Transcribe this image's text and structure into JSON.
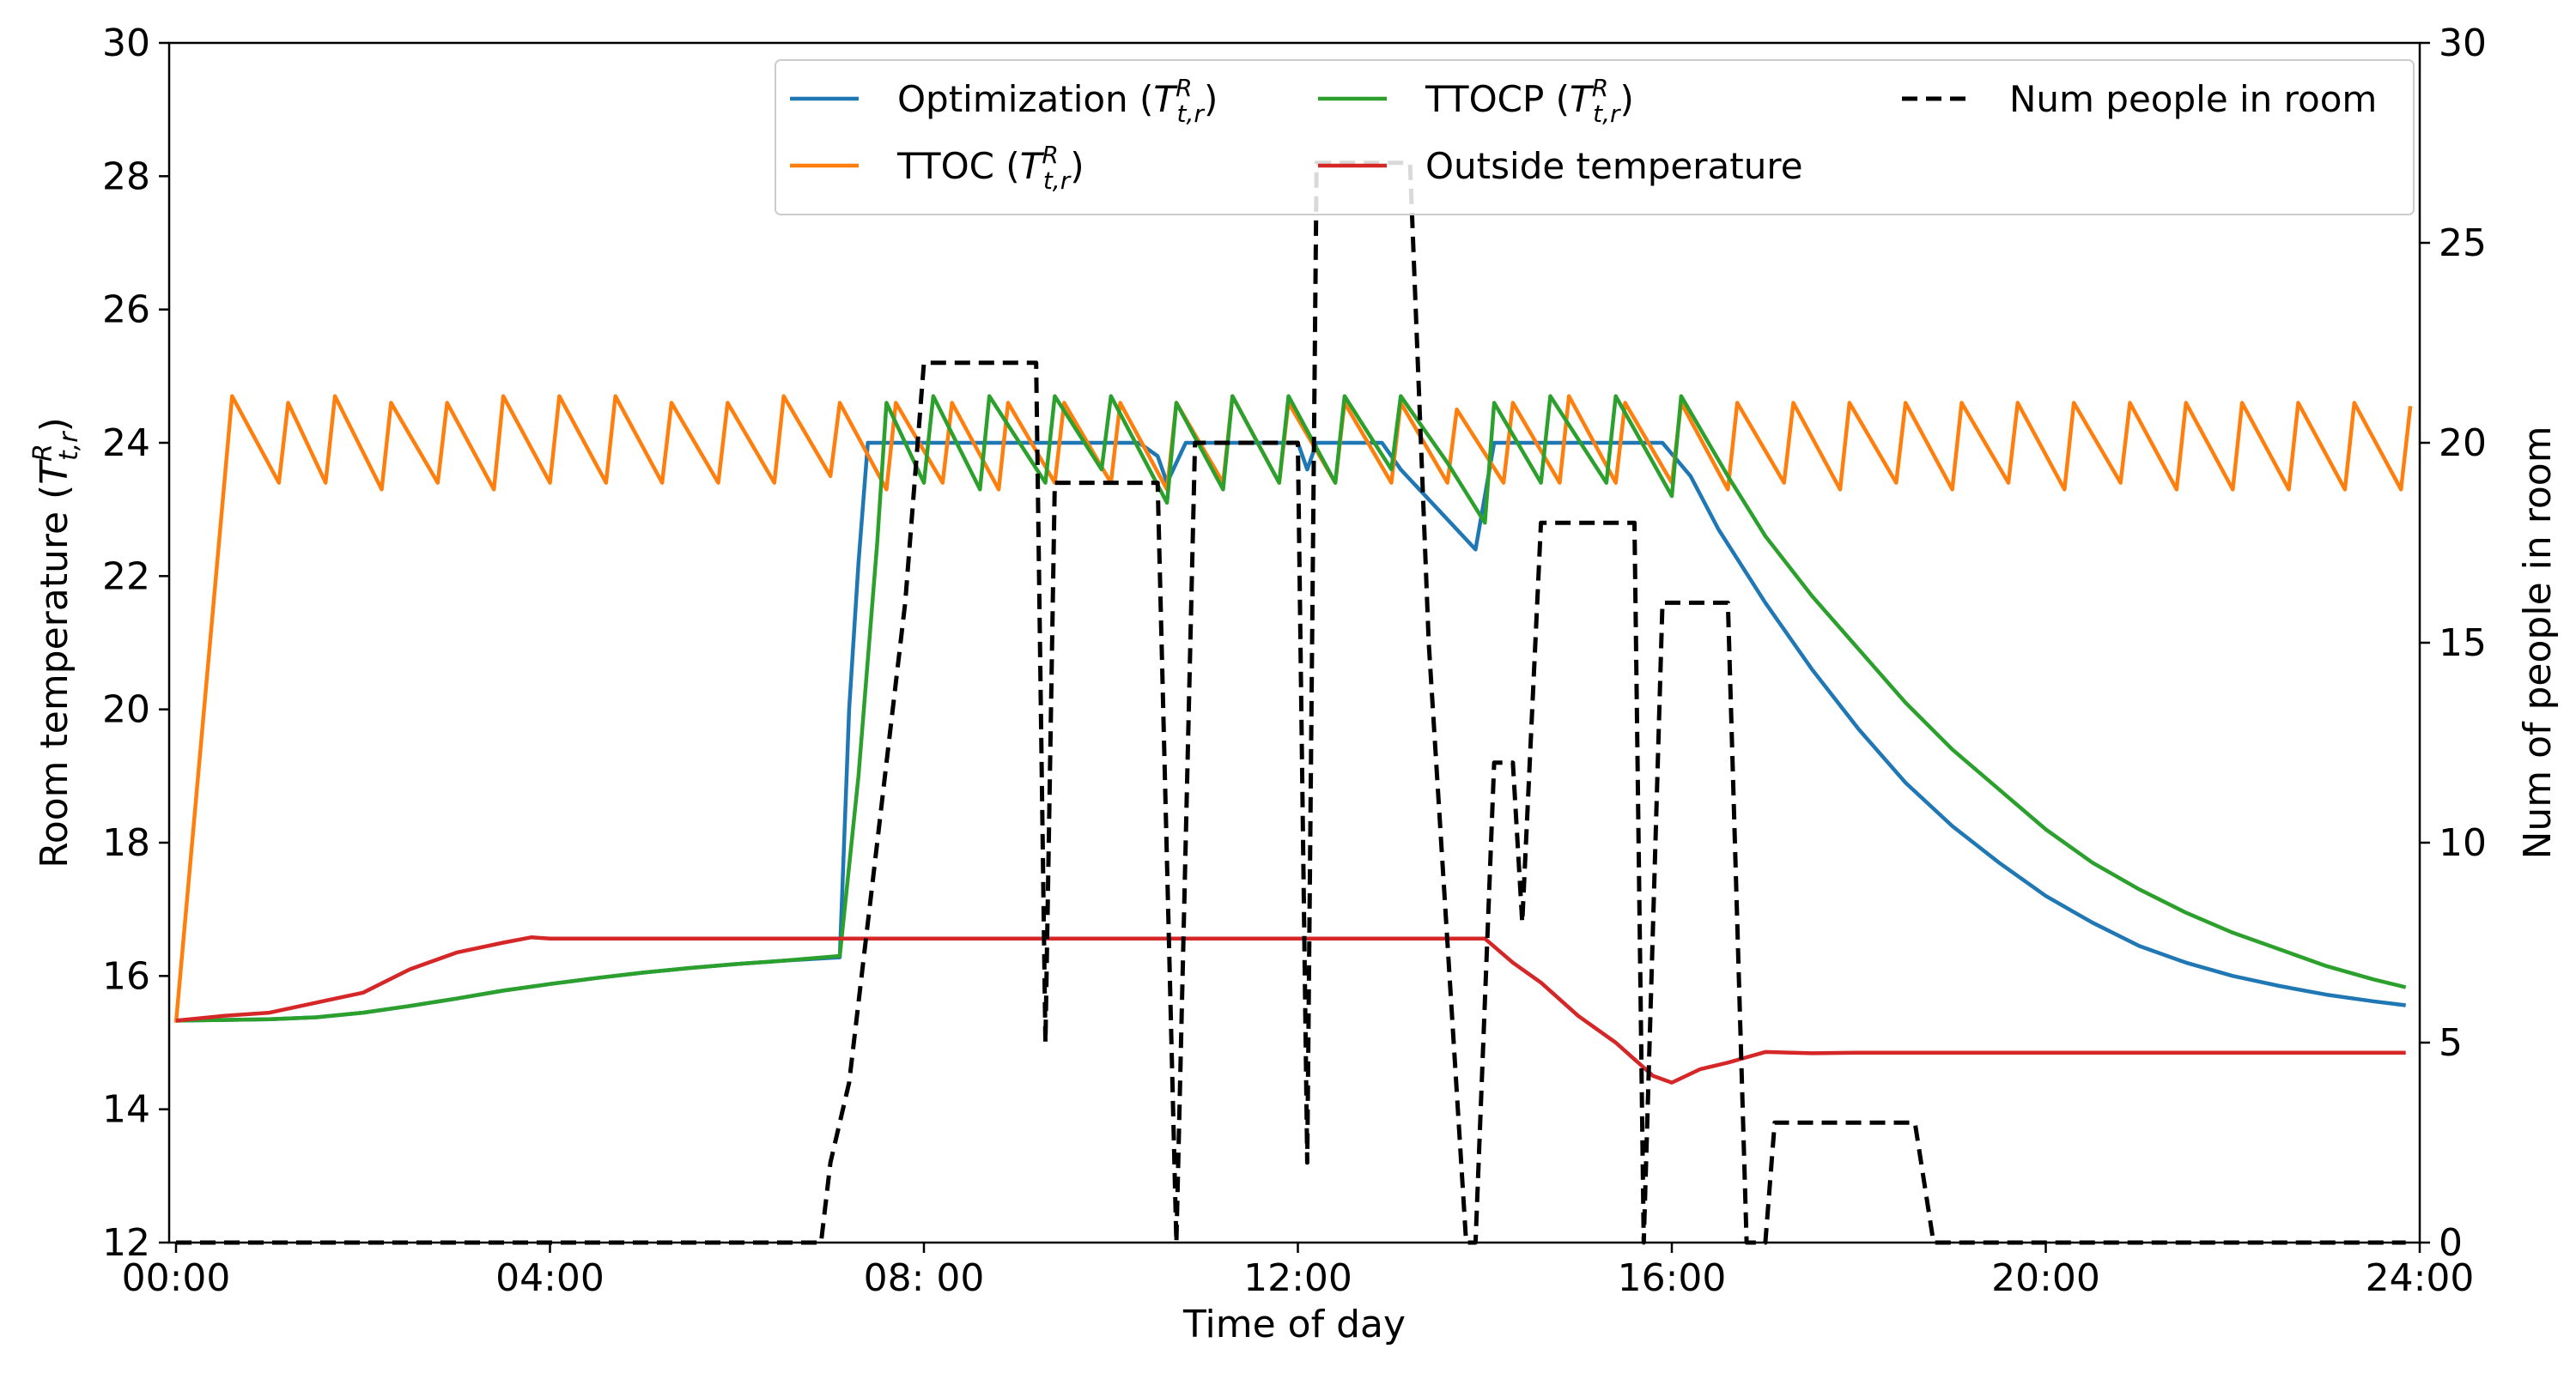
{
  "chart_data": {
    "type": "line",
    "xlabel": "Time of day",
    "ylabel_left": "Room temperature (",
    "ylabel_left_symbol": "T",
    "ylabel_left_sup": "R",
    "ylabel_left_sub": "t,r",
    "ylabel_left_close": ")",
    "ylabel_right": "Num of people in room",
    "xlim": [
      0,
      24
    ],
    "ylim_left": [
      12,
      30
    ],
    "ylim_right": [
      0,
      30
    ],
    "x_ticks": [
      {
        "value": 0,
        "label": "00:00"
      },
      {
        "value": 4,
        "label": "04:00"
      },
      {
        "value": 8,
        "label": "08: 00"
      },
      {
        "value": 12,
        "label": "12:00"
      },
      {
        "value": 16,
        "label": "16:00"
      },
      {
        "value": 20,
        "label": "20:00"
      },
      {
        "value": 24,
        "label": "24:00"
      }
    ],
    "y_ticks_left": [
      12,
      14,
      16,
      18,
      20,
      22,
      24,
      26,
      28,
      30
    ],
    "y_ticks_right": [
      0,
      5,
      10,
      15,
      20,
      25,
      30
    ],
    "grid": false,
    "legend_position": "top-right",
    "legend": [
      {
        "series": "optimization",
        "text": "Optimization (",
        "symbol": "T",
        "sup": "R",
        "sub": "t,r",
        "close": ")"
      },
      {
        "series": "ttocp",
        "text": "TTOCP (",
        "symbol": "T",
        "sup": "R",
        "sub": "t,r",
        "close": ")"
      },
      {
        "series": "people",
        "text": "Num people in room"
      },
      {
        "series": "ttoc",
        "text": "TTOC (",
        "symbol": "T",
        "sup": "R",
        "sub": "t,r",
        "close": ")"
      },
      {
        "series": "outside",
        "text": "Outside temperature"
      }
    ],
    "series": [
      {
        "id": "optimization",
        "color": "#1f77b4",
        "axis": "left",
        "style": "solid",
        "points": [
          [
            0,
            15.33
          ],
          [
            0.5,
            15.34
          ],
          [
            1,
            15.35
          ],
          [
            1.5,
            15.38
          ],
          [
            2,
            15.45
          ],
          [
            2.5,
            15.55
          ],
          [
            3,
            15.66
          ],
          [
            3.5,
            15.78
          ],
          [
            4,
            15.88
          ],
          [
            4.5,
            15.97
          ],
          [
            5,
            16.05
          ],
          [
            5.5,
            16.12
          ],
          [
            6,
            16.18
          ],
          [
            6.5,
            16.23
          ],
          [
            7.1,
            16.28
          ],
          [
            7.2,
            20
          ],
          [
            7.3,
            22.2
          ],
          [
            7.4,
            24
          ],
          [
            8,
            24
          ],
          [
            9,
            24
          ],
          [
            10,
            24
          ],
          [
            10.3,
            24
          ],
          [
            10.5,
            23.8
          ],
          [
            10.6,
            23.4
          ],
          [
            10.8,
            24
          ],
          [
            12,
            24
          ],
          [
            12.1,
            23.6
          ],
          [
            12.2,
            24
          ],
          [
            12.9,
            24
          ],
          [
            13.1,
            23.6
          ],
          [
            13.5,
            23
          ],
          [
            13.9,
            22.4
          ],
          [
            14.1,
            24
          ],
          [
            15,
            24
          ],
          [
            15.9,
            24
          ],
          [
            16.2,
            23.5
          ],
          [
            16.5,
            22.7
          ],
          [
            17,
            21.6
          ],
          [
            17.5,
            20.6
          ],
          [
            18,
            19.7
          ],
          [
            18.5,
            18.9
          ],
          [
            19,
            18.25
          ],
          [
            19.5,
            17.7
          ],
          [
            20,
            17.2
          ],
          [
            20.5,
            16.8
          ],
          [
            21,
            16.45
          ],
          [
            21.5,
            16.2
          ],
          [
            22,
            16
          ],
          [
            22.5,
            15.85
          ],
          [
            23,
            15.72
          ],
          [
            23.5,
            15.62
          ],
          [
            23.85,
            15.56
          ]
        ]
      },
      {
        "id": "ttocp",
        "color": "#2ca02c",
        "axis": "left",
        "style": "solid",
        "points": [
          [
            0,
            15.33
          ],
          [
            0.5,
            15.34
          ],
          [
            1,
            15.35
          ],
          [
            1.5,
            15.38
          ],
          [
            2,
            15.45
          ],
          [
            2.5,
            15.55
          ],
          [
            3,
            15.66
          ],
          [
            3.5,
            15.78
          ],
          [
            4,
            15.88
          ],
          [
            4.5,
            15.97
          ],
          [
            5,
            16.05
          ],
          [
            5.5,
            16.12
          ],
          [
            6,
            16.18
          ],
          [
            6.5,
            16.23
          ],
          [
            7.1,
            16.3
          ],
          [
            7.3,
            19
          ],
          [
            7.5,
            22.5
          ],
          [
            7.6,
            24.6
          ],
          [
            8,
            23.4
          ],
          [
            8.1,
            24.7
          ],
          [
            8.6,
            23.3
          ],
          [
            8.7,
            24.7
          ],
          [
            9.3,
            23.4
          ],
          [
            9.4,
            24.7
          ],
          [
            9.9,
            23.6
          ],
          [
            10,
            24.7
          ],
          [
            10.6,
            23.1
          ],
          [
            10.7,
            24.6
          ],
          [
            11.2,
            23.3
          ],
          [
            11.3,
            24.7
          ],
          [
            11.8,
            23.4
          ],
          [
            11.9,
            24.7
          ],
          [
            12.4,
            23.4
          ],
          [
            12.5,
            24.7
          ],
          [
            13,
            23.6
          ],
          [
            13.1,
            24.7
          ],
          [
            13.6,
            23.7
          ],
          [
            14,
            22.8
          ],
          [
            14.1,
            24.6
          ],
          [
            14.6,
            23.4
          ],
          [
            14.7,
            24.7
          ],
          [
            15.3,
            23.4
          ],
          [
            15.4,
            24.7
          ],
          [
            16,
            23.2
          ],
          [
            16.1,
            24.7
          ],
          [
            16.6,
            23.5
          ],
          [
            17,
            22.6
          ],
          [
            17.5,
            21.7
          ],
          [
            18,
            20.9
          ],
          [
            18.5,
            20.1
          ],
          [
            19,
            19.4
          ],
          [
            19.5,
            18.8
          ],
          [
            20,
            18.2
          ],
          [
            20.5,
            17.7
          ],
          [
            21,
            17.3
          ],
          [
            21.5,
            16.95
          ],
          [
            22,
            16.65
          ],
          [
            22.5,
            16.4
          ],
          [
            23,
            16.15
          ],
          [
            23.5,
            15.95
          ],
          [
            23.85,
            15.83
          ]
        ]
      },
      {
        "id": "ttoc",
        "color": "#ff7f0e",
        "axis": "left",
        "style": "solid",
        "points": [
          [
            0,
            15.3
          ],
          [
            0.6,
            24.7
          ],
          [
            1.1,
            23.4
          ],
          [
            1.2,
            24.6
          ],
          [
            1.6,
            23.4
          ],
          [
            1.7,
            24.7
          ],
          [
            2.2,
            23.3
          ],
          [
            2.3,
            24.6
          ],
          [
            2.8,
            23.4
          ],
          [
            2.9,
            24.6
          ],
          [
            3.4,
            23.3
          ],
          [
            3.5,
            24.7
          ],
          [
            4,
            23.4
          ],
          [
            4.1,
            24.7
          ],
          [
            4.6,
            23.4
          ],
          [
            4.7,
            24.7
          ],
          [
            5.2,
            23.4
          ],
          [
            5.3,
            24.6
          ],
          [
            5.8,
            23.4
          ],
          [
            5.9,
            24.6
          ],
          [
            6.4,
            23.4
          ],
          [
            6.5,
            24.7
          ],
          [
            7,
            23.5
          ],
          [
            7.1,
            24.6
          ],
          [
            7.6,
            23.3
          ],
          [
            7.7,
            24.6
          ],
          [
            8.2,
            23.4
          ],
          [
            8.3,
            24.6
          ],
          [
            8.8,
            23.3
          ],
          [
            8.9,
            24.6
          ],
          [
            9.4,
            23.4
          ],
          [
            9.5,
            24.6
          ],
          [
            10,
            23.4
          ],
          [
            10.1,
            24.6
          ],
          [
            10.6,
            23.3
          ],
          [
            10.7,
            24.6
          ],
          [
            11.2,
            23.4
          ],
          [
            11.3,
            24.7
          ],
          [
            11.8,
            23.4
          ],
          [
            11.9,
            24.6
          ],
          [
            12.4,
            23.4
          ],
          [
            12.5,
            24.6
          ],
          [
            13,
            23.4
          ],
          [
            13.1,
            24.6
          ],
          [
            13.6,
            23.4
          ],
          [
            13.7,
            24.5
          ],
          [
            14.2,
            23.4
          ],
          [
            14.3,
            24.6
          ],
          [
            14.8,
            23.4
          ],
          [
            14.9,
            24.7
          ],
          [
            15.4,
            23.4
          ],
          [
            15.5,
            24.6
          ],
          [
            16,
            23.4
          ],
          [
            16.1,
            24.6
          ],
          [
            16.6,
            23.3
          ],
          [
            16.7,
            24.6
          ],
          [
            17.2,
            23.4
          ],
          [
            17.3,
            24.6
          ],
          [
            17.8,
            23.3
          ],
          [
            17.9,
            24.6
          ],
          [
            18.4,
            23.4
          ],
          [
            18.5,
            24.6
          ],
          [
            19,
            23.3
          ],
          [
            19.1,
            24.6
          ],
          [
            19.6,
            23.4
          ],
          [
            19.7,
            24.6
          ],
          [
            20.2,
            23.3
          ],
          [
            20.3,
            24.6
          ],
          [
            20.8,
            23.4
          ],
          [
            20.9,
            24.6
          ],
          [
            21.4,
            23.3
          ],
          [
            21.5,
            24.6
          ],
          [
            22,
            23.3
          ],
          [
            22.1,
            24.6
          ],
          [
            22.6,
            23.3
          ],
          [
            22.7,
            24.6
          ],
          [
            23.2,
            23.3
          ],
          [
            23.3,
            24.6
          ],
          [
            23.8,
            23.3
          ],
          [
            23.9,
            24.55
          ]
        ]
      },
      {
        "id": "outside",
        "color": "#d62728",
        "axis": "left",
        "style": "solid",
        "points": [
          [
            0,
            15.33
          ],
          [
            0.5,
            15.4
          ],
          [
            1,
            15.45
          ],
          [
            1.5,
            15.6
          ],
          [
            2,
            15.75
          ],
          [
            2.5,
            16.1
          ],
          [
            3,
            16.35
          ],
          [
            3.5,
            16.5
          ],
          [
            3.8,
            16.58
          ],
          [
            4,
            16.56
          ],
          [
            5,
            16.56
          ],
          [
            6,
            16.56
          ],
          [
            7,
            16.56
          ],
          [
            8,
            16.56
          ],
          [
            9,
            16.56
          ],
          [
            10,
            16.56
          ],
          [
            11,
            16.56
          ],
          [
            12,
            16.56
          ],
          [
            13,
            16.56
          ],
          [
            14,
            16.56
          ],
          [
            14.3,
            16.2
          ],
          [
            14.6,
            15.9
          ],
          [
            15,
            15.4
          ],
          [
            15.4,
            15
          ],
          [
            15.8,
            14.5
          ],
          [
            16,
            14.4
          ],
          [
            16.3,
            14.6
          ],
          [
            16.6,
            14.7
          ],
          [
            17,
            14.86
          ],
          [
            17.5,
            14.84
          ],
          [
            18,
            14.85
          ],
          [
            19,
            14.85
          ],
          [
            20,
            14.85
          ],
          [
            21,
            14.85
          ],
          [
            22,
            14.85
          ],
          [
            23,
            14.85
          ],
          [
            23.85,
            14.85
          ]
        ]
      },
      {
        "id": "people",
        "color": "#000000",
        "axis": "right",
        "style": "dashed",
        "points": [
          [
            0,
            0
          ],
          [
            6.9,
            0
          ],
          [
            7,
            2
          ],
          [
            7.2,
            4
          ],
          [
            7.4,
            8
          ],
          [
            7.5,
            10
          ],
          [
            7.6,
            12
          ],
          [
            7.7,
            14
          ],
          [
            7.8,
            16
          ],
          [
            8,
            22
          ],
          [
            9.2,
            22
          ],
          [
            9.3,
            5
          ],
          [
            9.4,
            19
          ],
          [
            10.5,
            19
          ],
          [
            10.7,
            0
          ],
          [
            10.9,
            20
          ],
          [
            12,
            20
          ],
          [
            12.1,
            2
          ],
          [
            12.2,
            27
          ],
          [
            13.2,
            27
          ],
          [
            13.4,
            15
          ],
          [
            13.8,
            0
          ],
          [
            13.9,
            0
          ],
          [
            14.1,
            12
          ],
          [
            14.3,
            12
          ],
          [
            14.4,
            8
          ],
          [
            14.6,
            18
          ],
          [
            15.6,
            18
          ],
          [
            15.7,
            0
          ],
          [
            15.9,
            16
          ],
          [
            16.6,
            16
          ],
          [
            16.8,
            0
          ],
          [
            17,
            0
          ],
          [
            17.1,
            3
          ],
          [
            18.6,
            3
          ],
          [
            18.8,
            0
          ],
          [
            23.85,
            0
          ]
        ]
      }
    ]
  }
}
